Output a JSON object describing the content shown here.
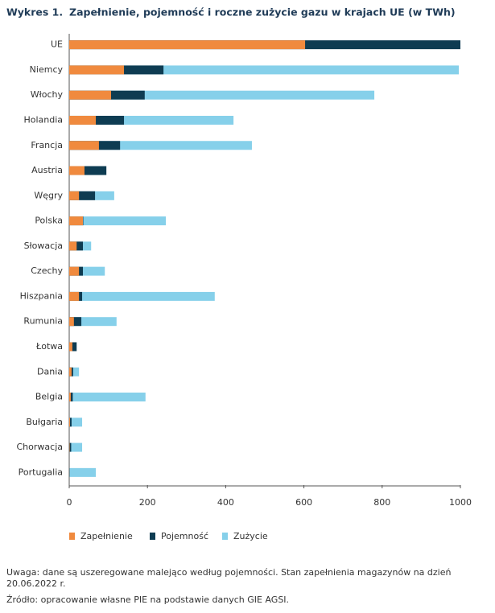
{
  "chart_data": {
    "type": "bar",
    "orientation": "horizontal",
    "label": "Wykres 1.",
    "title": "Zapełnienie, pojemność i roczne zużycie gazu w krajach UE (w TWh)",
    "categories": [
      "UE",
      "Niemcy",
      "Włochy",
      "Holandia",
      "Francja",
      "Austria",
      "Węgry",
      "Polska",
      "Słowacja",
      "Czechy",
      "Hiszpania",
      "Rumunia",
      "Łotwa",
      "Dania",
      "Belgia",
      "Bułgaria",
      "Chorwacja",
      "Portugalia"
    ],
    "series": [
      {
        "name": "Zużycie",
        "color": "#86d0ea",
        "values": [
          null,
          996,
          780,
          420,
          467,
          90,
          115,
          247,
          56,
          91,
          372,
          121,
          12,
          25,
          195,
          33,
          33,
          68
        ]
      },
      {
        "name": "Pojemność",
        "color": "#0e3c52",
        "values": [
          1000,
          241,
          193,
          140,
          130,
          95,
          66,
          36,
          35,
          35,
          33,
          31,
          19,
          10,
          9,
          6,
          5,
          1
        ]
      },
      {
        "name": "Zapełnienie",
        "color": "#f08a3e",
        "values": [
          603,
          140,
          107,
          68,
          76,
          39,
          25,
          35,
          19,
          25,
          25,
          12,
          8,
          6,
          4,
          2,
          1,
          0.3
        ]
      }
    ],
    "legend_order": [
      2,
      1,
      0
    ],
    "xlim": [
      0,
      1000
    ],
    "xticks": [
      0,
      200,
      400,
      600,
      800,
      1000
    ],
    "notes": [
      "Uwaga: dane są uszeregowane malejąco według pojemności. Stan zapełnienia magazynów na dzień 20.06.2022 r.",
      "Źródło: opracowanie własne PIE na podstawie danych GIE AGSI."
    ]
  }
}
